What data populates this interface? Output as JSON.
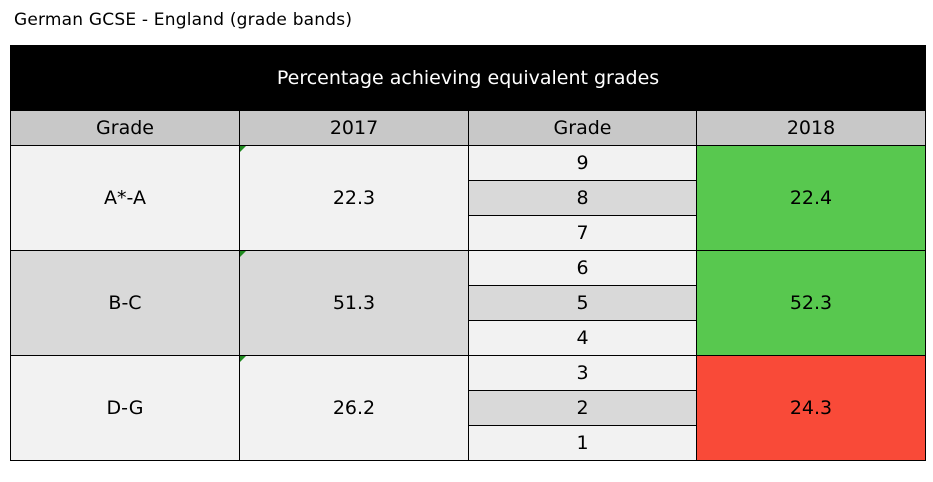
{
  "caption": "German GCSE - England (grade bands)",
  "table": {
    "title": "Percentage achieving equivalent grades",
    "headers": [
      "Grade",
      "2017",
      "Grade",
      "2018"
    ],
    "groups": [
      {
        "band": "A*-A",
        "value_2017": "22.3",
        "sub_grades": [
          "9",
          "8",
          "7"
        ],
        "value_2018": "22.4",
        "color_2018": "#58c84f"
      },
      {
        "band": "B-C",
        "value_2017": "51.3",
        "sub_grades": [
          "6",
          "5",
          "4"
        ],
        "value_2018": "52.3",
        "color_2018": "#58c84f"
      },
      {
        "band": "D-G",
        "value_2017": "26.2",
        "sub_grades": [
          "3",
          "2",
          "1"
        ],
        "value_2018": "24.3",
        "color_2018": "#f94a38"
      }
    ]
  }
}
